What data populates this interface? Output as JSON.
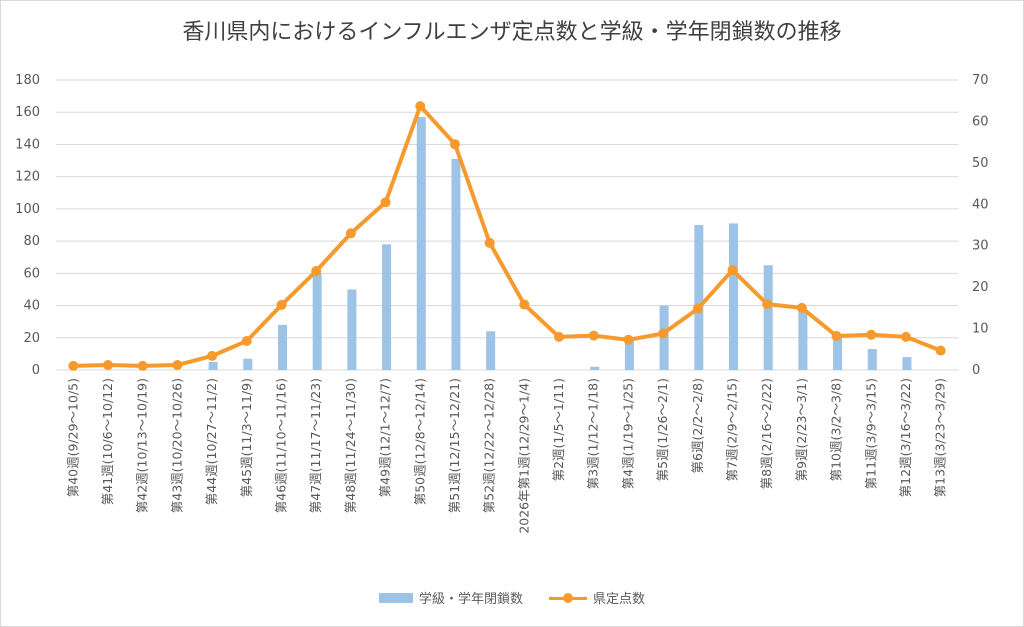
{
  "chart_data": {
    "type": "bar",
    "title": "香川県内におけるインフルエンザ定点数と学級・学年閉鎖数の推移",
    "categories": [
      "第40週(9/29～10/5)",
      "第41週(10/6～10/12)",
      "第42週(10/13～10/19)",
      "第43週(10/20～10/26)",
      "第44週(10/27～11/2)",
      "第45週(11/3～11/9)",
      "第46週(11/10～11/16)",
      "第47週(11/17～11/23)",
      "第48週(11/24～11/30)",
      "第49週(12/1～12/7)",
      "第50週(12/8～12/14)",
      "第51週(12/15～12/21)",
      "第52週(12/22～12/28)",
      "2026年第1週(12/29～1/4)",
      "第2週(1/5～1/11)",
      "第3週(1/12～1/18)",
      "第4週(1/19～1/25)",
      "第5週(1/26～2/1)",
      "第6週(2/2～2/8)",
      "第7週(2/9～2/15)",
      "第8週(2/16～2/22)",
      "第9週(2/23～3/1)",
      "第10週(3/2～3/8)",
      "第11週(3/9～3/15)",
      "第12週(3/16～3/22)",
      "第13週(3/23～3/29)"
    ],
    "series": [
      {
        "name": "学級・学年閉鎖数",
        "type": "bar",
        "axis": "left",
        "color": "#9dc3e6",
        "values": [
          0,
          0,
          0,
          0,
          5,
          7,
          28,
          60,
          50,
          78,
          157,
          131,
          24,
          0,
          0,
          2,
          18,
          40,
          90,
          91,
          65,
          38,
          20,
          13,
          8,
          0
        ]
      },
      {
        "name": "県定点数",
        "type": "line",
        "axis": "right",
        "color": "#f79a2e",
        "values": [
          1.0,
          1.2,
          1.0,
          1.2,
          3.4,
          7.0,
          15.7,
          23.9,
          33.0,
          40.5,
          63.7,
          54.5,
          30.7,
          15.8,
          8.0,
          8.3,
          7.3,
          8.8,
          14.8,
          24.1,
          15.9,
          15.0,
          8.2,
          8.5,
          8.0,
          4.7
        ]
      }
    ],
    "y_left": {
      "min": 0,
      "max": 180,
      "step": 20,
      "ticks": [
        "0",
        "20",
        "40",
        "60",
        "80",
        "100",
        "120",
        "140",
        "160",
        "180"
      ]
    },
    "y_right": {
      "min": 0,
      "max": 70,
      "step": 10,
      "ticks": [
        "0",
        "10",
        "20",
        "30",
        "40",
        "50",
        "60",
        "70"
      ]
    },
    "grid": true,
    "legend": "bottom"
  }
}
